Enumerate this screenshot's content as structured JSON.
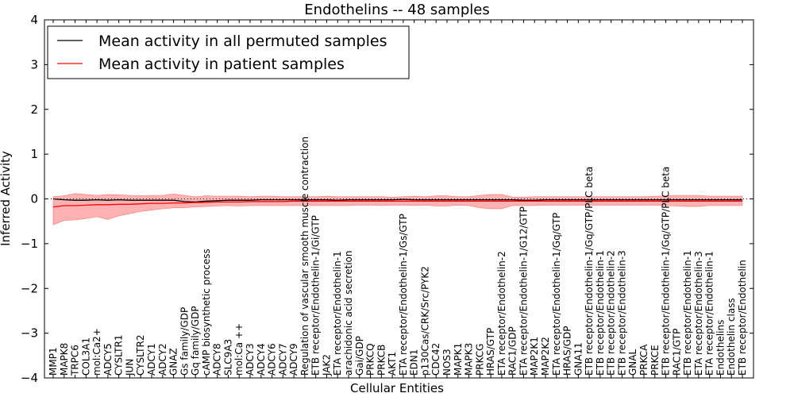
{
  "chart_data": {
    "type": "line",
    "title": "Endothelins -- 48 samples",
    "xlabel": "Cellular Entities",
    "ylabel": "Inferred Activity",
    "ylim": [
      -4,
      4
    ],
    "yticks": [
      -4,
      -3,
      -2,
      -1,
      0,
      1,
      2,
      3,
      4
    ],
    "ytick_labels": [
      "−4",
      "−3",
      "−2",
      "−1",
      "0",
      "1",
      "2",
      "3",
      "4"
    ],
    "legend_position": "top-left",
    "colors": {
      "permuted": "#000000",
      "patient": "#ff0000",
      "band": "#ff0000",
      "zero_line": "#000000"
    },
    "categories": [
      "MMP1",
      "MAPK8",
      "TRPC6",
      "COL3A1",
      "mol:Ca2+",
      "ADCY5",
      "CYSLTR1",
      "JUN",
      "CYSLTR2",
      "ADCY1",
      "ADCY2",
      "GNAZ",
      "Gs family/GDP",
      "Gq family/GDP",
      "cAMP biosynthetic process",
      "ADCY8",
      "SLC9A3",
      "mol:Ca ++",
      "ADCY3",
      "ADCY4",
      "ADCY6",
      "ADCY7",
      "ADCY9",
      "Regulation of vascular smooth muscle contraction",
      "ETB receptor/Endothelin-1/Gi/GTP",
      "JAK2",
      "ETA receptor/Endothelin-1",
      "arachidonic acid secretion",
      "Gai/GDP",
      "PRKCQ",
      "PRKCB",
      "AKT1",
      "ETA receptor/Endothelin-1/Gs/GTP",
      "EDN1",
      "p130Cas/CRK/Src/PYK2",
      "CDC42",
      "NOS3",
      "MAPK1",
      "MAPK3",
      "PRKCG",
      "HRAS/GTP",
      "ETA receptor/Endothelin-2",
      "RAC1/GDP",
      "ETA receptor/Endothelin-1/G12/GTP",
      "MAP2K1",
      "MAP2K2",
      "ETA receptor/Endothelin-1/Gq/GTP",
      "HRAS/GDP",
      "GNA11",
      "ETB receptor/Endothelin-1/Gq/GTP/PLC beta",
      "ETB receptor/Endothelin-1",
      "ETB receptor/Endothelin-2",
      "ETB receptor/Endothelin-3",
      "GNAL",
      "PRKCA",
      "PRKCE",
      "ETB receptor/Endothelin-1/Gq/GTP/PLC beta",
      "RAC1/GTP",
      "ETB receptor/Endothelin-1",
      "ETA receptor/Endothelin-3",
      "ETA receptor/Endothelin-1",
      "Endothelins",
      "Endothelin class",
      "ETB receptor/Endothelin"
    ],
    "series": [
      {
        "name": "Mean activity in all permuted samples",
        "values": [
          0.0,
          -0.02,
          -0.03,
          -0.03,
          -0.02,
          -0.03,
          -0.02,
          -0.03,
          -0.03,
          -0.03,
          -0.03,
          -0.03,
          -0.06,
          -0.07,
          -0.05,
          -0.04,
          -0.03,
          -0.03,
          -0.03,
          -0.02,
          -0.02,
          -0.02,
          -0.02,
          -0.02,
          -0.02,
          -0.02,
          -0.03,
          -0.02,
          -0.02,
          -0.02,
          -0.02,
          -0.02,
          -0.01,
          -0.02,
          -0.02,
          -0.02,
          -0.02,
          -0.02,
          -0.02,
          -0.02,
          -0.02,
          -0.02,
          -0.02,
          -0.03,
          -0.03,
          -0.02,
          -0.02,
          -0.02,
          -0.02,
          -0.02,
          -0.02,
          -0.02,
          -0.02,
          -0.02,
          -0.02,
          -0.02,
          -0.02,
          -0.02,
          -0.02,
          -0.02,
          -0.02,
          -0.02,
          -0.02,
          -0.02
        ]
      },
      {
        "name": "Mean activity in patient samples",
        "values": [
          -0.18,
          -0.15,
          -0.15,
          -0.14,
          -0.13,
          -0.13,
          -0.12,
          -0.12,
          -0.11,
          -0.1,
          -0.1,
          -0.09,
          -0.09,
          -0.08,
          -0.08,
          -0.07,
          -0.07,
          -0.07,
          -0.06,
          -0.06,
          -0.06,
          -0.06,
          -0.05,
          -0.05,
          -0.05,
          -0.05,
          -0.05,
          -0.05,
          -0.05,
          -0.05,
          -0.05,
          -0.05,
          -0.05,
          -0.05,
          -0.05,
          -0.05,
          -0.05,
          -0.05,
          -0.05,
          -0.05,
          -0.05,
          -0.05,
          -0.05,
          -0.05,
          -0.05,
          -0.05,
          -0.05,
          -0.05,
          -0.05,
          -0.05,
          -0.05,
          -0.05,
          -0.05,
          -0.05,
          -0.05,
          -0.05,
          -0.05,
          -0.05,
          -0.05,
          -0.05,
          -0.05,
          -0.05,
          -0.05,
          -0.05
        ]
      }
    ],
    "band_upper": [
      0.05,
      0.07,
      0.12,
      0.1,
      0.08,
      0.1,
      0.09,
      0.08,
      0.07,
      0.08,
      0.08,
      0.11,
      0.08,
      0.05,
      0.07,
      0.06,
      0.06,
      0.06,
      0.05,
      0.06,
      0.06,
      0.05,
      0.05,
      0.05,
      0.05,
      0.06,
      0.05,
      0.05,
      0.05,
      0.05,
      0.05,
      0.04,
      0.05,
      0.06,
      0.05,
      0.07,
      0.07,
      0.05,
      0.05,
      0.08,
      0.1,
      0.1,
      0.04,
      0.04,
      0.05,
      0.05,
      0.05,
      0.05,
      0.05,
      0.05,
      0.05,
      0.05,
      0.05,
      0.05,
      0.05,
      0.06,
      0.07,
      0.08,
      0.08,
      0.08,
      0.06,
      0.06,
      0.06,
      0.06
    ],
    "band_lower": [
      -0.58,
      -0.48,
      -0.47,
      -0.44,
      -0.4,
      -0.46,
      -0.38,
      -0.33,
      -0.28,
      -0.25,
      -0.22,
      -0.2,
      -0.2,
      -0.18,
      -0.17,
      -0.16,
      -0.15,
      -0.16,
      -0.15,
      -0.15,
      -0.15,
      -0.15,
      -0.15,
      -0.15,
      -0.15,
      -0.15,
      -0.15,
      -0.15,
      -0.14,
      -0.14,
      -0.15,
      -0.14,
      -0.14,
      -0.15,
      -0.14,
      -0.16,
      -0.16,
      -0.14,
      -0.15,
      -0.2,
      -0.22,
      -0.22,
      -0.15,
      -0.15,
      -0.15,
      -0.14,
      -0.14,
      -0.14,
      -0.14,
      -0.14,
      -0.14,
      -0.14,
      -0.14,
      -0.14,
      -0.14,
      -0.14,
      -0.15,
      -0.16,
      -0.17,
      -0.17,
      -0.15,
      -0.15,
      -0.15,
      -0.15
    ]
  }
}
